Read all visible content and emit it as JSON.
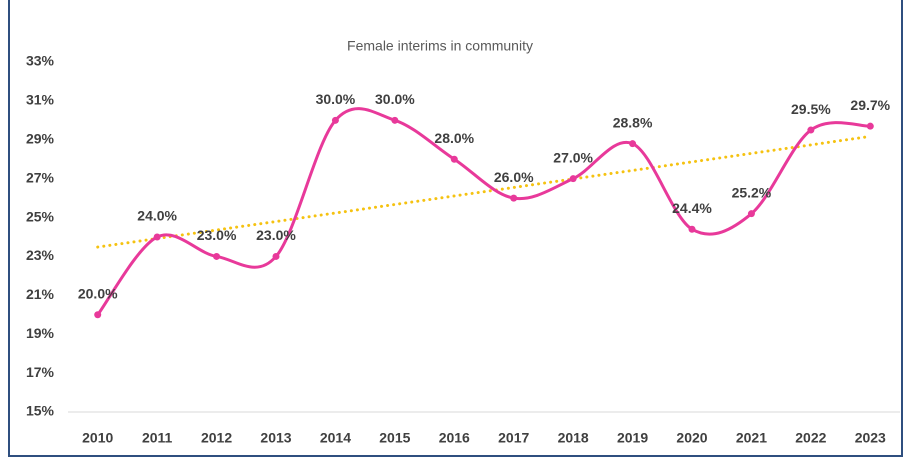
{
  "chart_data": {
    "type": "line",
    "title": "Female interims in community",
    "categories": [
      "2010",
      "2011",
      "2012",
      "2013",
      "2014",
      "2015",
      "2016",
      "2017",
      "2018",
      "2019",
      "2020",
      "2021",
      "2022",
      "2023"
    ],
    "series": [
      {
        "name": "Female interims",
        "color": "#e8399a",
        "values": [
          20,
          24,
          23,
          23,
          30,
          30,
          28,
          26,
          27,
          28.8,
          24.4,
          25.2,
          29.5,
          29.7
        ],
        "value_labels": [
          "20.0%",
          "24.0%",
          "23.0%",
          "23.0%",
          "30.0%",
          "30.0%",
          "28.0%",
          "26.0%",
          "27.0%",
          "28.8%",
          "24.4%",
          "25.2%",
          "29.5%",
          "29.7%"
        ]
      }
    ],
    "ylim": [
      15,
      33
    ],
    "yticks": [
      {
        "value": 15,
        "label": "15%"
      },
      {
        "value": 17,
        "label": "17%"
      },
      {
        "value": 19,
        "label": "19%"
      },
      {
        "value": 21,
        "label": "21%"
      },
      {
        "value": 23,
        "label": "23%"
      },
      {
        "value": 25,
        "label": "25%"
      },
      {
        "value": 27,
        "label": "27%"
      },
      {
        "value": 29,
        "label": "29%"
      },
      {
        "value": 31,
        "label": "31%"
      },
      {
        "value": 33,
        "label": "33%"
      }
    ],
    "smooth": true,
    "grid": false,
    "trendline": true,
    "trendline_color": "#f5c211"
  }
}
